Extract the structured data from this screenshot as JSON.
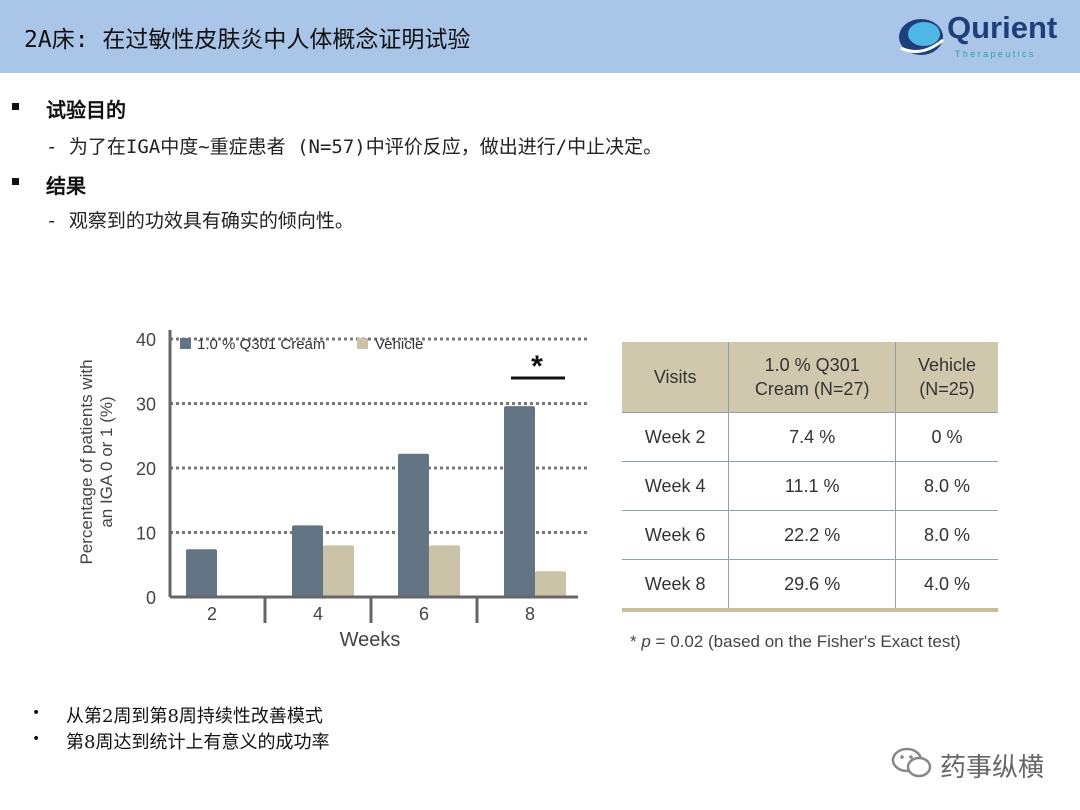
{
  "header": {
    "title": "2A床: 在过敏性皮肤炎中人体概念证明试验"
  },
  "logo": {
    "name": "Qurient",
    "tagline": "Therapeutics"
  },
  "bullets": [
    {
      "heading": "试验目的",
      "detail": "- 为了在IGA中度~重症患者 (N=57)中评价反应，做出进行/中止决定。"
    },
    {
      "heading": "结果",
      "detail": "- 观察到的功效具有确实的倾向性。"
    }
  ],
  "chart_data": {
    "type": "bar",
    "categories": [
      "2",
      "4",
      "6",
      "8"
    ],
    "series": [
      {
        "name": "1.0 % Q301 Cream",
        "values": [
          7.4,
          11.1,
          22.2,
          29.6
        ],
        "color": "#637585"
      },
      {
        "name": "Vehicle",
        "values": [
          0,
          8.0,
          8.0,
          4.0
        ],
        "color": "#c9c2a6"
      }
    ],
    "xlabel": "Weeks",
    "ylabel_line1": "Percentage of patients with",
    "ylabel_line2": "an IGA 0 or 1 (%)",
    "ylim": [
      0,
      40
    ],
    "yticks": [
      0,
      10,
      20,
      30,
      40
    ],
    "gridlines": "dotted",
    "legend_position": "top-left",
    "annotation": "*"
  },
  "table": {
    "headers": [
      "Visits",
      "1.0 % Q301 Cream (N=27)",
      "Vehicle (N=25)"
    ],
    "rows": [
      [
        "Week 2",
        "7.4 %",
        "0 %"
      ],
      [
        "Week 4",
        "11.1 %",
        "8.0 %"
      ],
      [
        "Week 6",
        "22.2 %",
        "8.0 %"
      ],
      [
        "Week 8",
        "29.6 %",
        "4.0 %"
      ]
    ]
  },
  "footnote": {
    "star": "*",
    "p": "p",
    "rest": " = 0.02 (based on the Fisher's Exact test)"
  },
  "footer_bullets": [
    "从第2周到第8周持续性改善模式",
    "第8周达到统计上有意义的成功率"
  ],
  "watermark": "药事纵横"
}
